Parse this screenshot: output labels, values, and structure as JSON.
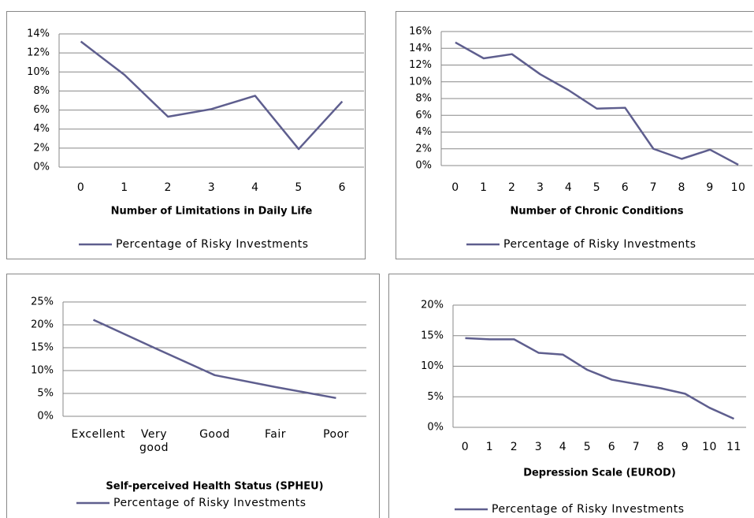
{
  "chart_data": [
    {
      "type": "line",
      "xlabel": "Number of Limitations in Daily Life",
      "categories": [
        "0",
        "1",
        "2",
        "3",
        "4",
        "5",
        "6"
      ],
      "series": [
        {
          "name": "Percentage of Risky Investments",
          "color": "#5e5e8e",
          "values": [
            13.2,
            9.7,
            5.3,
            6.1,
            7.5,
            1.9,
            6.9
          ]
        }
      ],
      "ylim": [
        0,
        14
      ],
      "yticks": [
        {
          "value": 0,
          "label": "0%"
        },
        {
          "value": 2,
          "label": "2%"
        },
        {
          "value": 4,
          "label": "4%"
        },
        {
          "value": 6,
          "label": "6%"
        },
        {
          "value": 8,
          "label": "8%"
        },
        {
          "value": 10,
          "label": "10%"
        },
        {
          "value": 12,
          "label": "12%"
        },
        {
          "value": 14,
          "label": "14%"
        }
      ],
      "grid": true,
      "legend": "bottom"
    },
    {
      "type": "line",
      "xlabel": "Number of Chronic Conditions",
      "categories": [
        "0",
        "1",
        "2",
        "3",
        "4",
        "5",
        "6",
        "7",
        "8",
        "9",
        "10"
      ],
      "series": [
        {
          "name": "Percentage of Risky Investments",
          "color": "#5e5e8e",
          "values": [
            14.7,
            12.8,
            13.3,
            10.9,
            9.0,
            6.8,
            6.9,
            2.0,
            0.8,
            1.9,
            0.1
          ]
        }
      ],
      "ylim": [
        0,
        16
      ],
      "yticks": [
        {
          "value": 0,
          "label": "0%"
        },
        {
          "value": 2,
          "label": "2%"
        },
        {
          "value": 4,
          "label": "4%"
        },
        {
          "value": 6,
          "label": "6%"
        },
        {
          "value": 8,
          "label": "8%"
        },
        {
          "value": 10,
          "label": "10%"
        },
        {
          "value": 12,
          "label": "12%"
        },
        {
          "value": 14,
          "label": "14%"
        },
        {
          "value": 16,
          "label": "16%"
        }
      ],
      "grid": true,
      "legend": "bottom"
    },
    {
      "type": "line",
      "xlabel": "Self-perceived Health Status (SPHEU)",
      "categories": [
        "Excellent",
        "Very good",
        "Good",
        "Fair",
        "Poor"
      ],
      "series": [
        {
          "name": "Percentage of Risky Investments",
          "color": "#5e5e8e",
          "values": [
            21.1,
            15.0,
            9.0,
            6.4,
            4.0
          ]
        }
      ],
      "ylim": [
        0,
        25
      ],
      "yticks": [
        {
          "value": 0,
          "label": "0%"
        },
        {
          "value": 5,
          "label": "5%"
        },
        {
          "value": 10,
          "label": "10%"
        },
        {
          "value": 15,
          "label": "15%"
        },
        {
          "value": 20,
          "label": "20%"
        },
        {
          "value": 25,
          "label": "25%"
        }
      ],
      "grid": true,
      "legend": "bottom"
    },
    {
      "type": "line",
      "xlabel": "Depression Scale (EUROD)",
      "categories": [
        "0",
        "1",
        "2",
        "3",
        "4",
        "5",
        "6",
        "7",
        "8",
        "9",
        "10",
        "11"
      ],
      "series": [
        {
          "name": "Percentage of Risky Investments",
          "color": "#5e5e8e",
          "values": [
            14.6,
            14.4,
            14.4,
            12.2,
            11.9,
            9.4,
            7.8,
            7.1,
            6.4,
            5.5,
            3.2,
            1.4
          ]
        }
      ],
      "ylim": [
        0,
        20
      ],
      "yticks": [
        {
          "value": 0,
          "label": "0%"
        },
        {
          "value": 5,
          "label": "5%"
        },
        {
          "value": 10,
          "label": "10%"
        },
        {
          "value": 15,
          "label": "15%"
        },
        {
          "value": 20,
          "label": "20%"
        }
      ],
      "grid": true,
      "legend": "bottom"
    }
  ]
}
